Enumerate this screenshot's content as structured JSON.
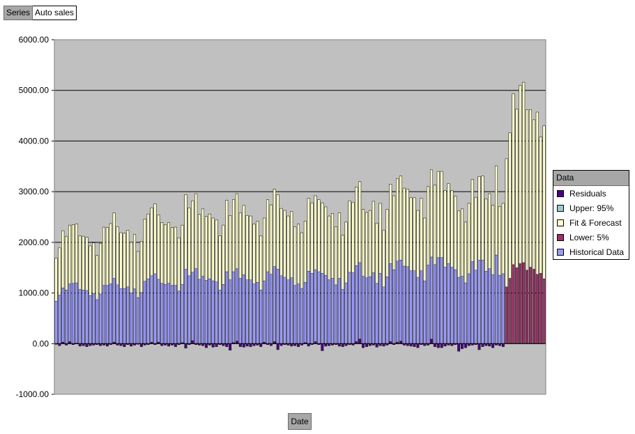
{
  "series_button": {
    "label": "Series",
    "value": "Auto sales"
  },
  "x_axis_button": {
    "label": "Date"
  },
  "legend": {
    "title": "Data",
    "items": [
      {
        "label": "Residuals",
        "color": "#4b0082"
      },
      {
        "label": "Upper: 95%",
        "color": "#99cccc"
      },
      {
        "label": "Fit & Forecast",
        "color": "#ffffcc"
      },
      {
        "label": "Lower: 5%",
        "color": "#993366"
      },
      {
        "label": "Historical Data",
        "color": "#9999ff"
      }
    ]
  },
  "chart_data": {
    "type": "bar",
    "title": "",
    "xlabel": "Date",
    "ylabel": "",
    "ylim": [
      -1000,
      6000
    ],
    "yticks": [
      "6000.00",
      "5000.00",
      "4000.00",
      "3000.00",
      "2000.00",
      "1000.00",
      "0.00",
      "-1000.00"
    ],
    "grid": true,
    "legend_position": "right",
    "plot_background": "#c0c0c0",
    "n_periods": 144,
    "forecast_start_index": 132,
    "fit_and_forecast": [
      1690,
      1890,
      2230,
      2120,
      2340,
      2350,
      2360,
      2130,
      2120,
      2100,
      1930,
      1990,
      1740,
      1980,
      2300,
      2290,
      2370,
      2580,
      2310,
      2190,
      2180,
      2240,
      2000,
      2160,
      1820,
      2020,
      2460,
      2560,
      2680,
      2760,
      2540,
      2390,
      2350,
      2390,
      2290,
      2300,
      2090,
      2340,
      2940,
      2680,
      2820,
      2960,
      2550,
      2660,
      2510,
      2560,
      2480,
      2440,
      2130,
      2340,
      2830,
      2530,
      2840,
      2960,
      2580,
      2730,
      2530,
      2520,
      2360,
      2420,
      2130,
      2480,
      2840,
      2740,
      3050,
      2940,
      2670,
      2630,
      2520,
      2610,
      2310,
      2360,
      2190,
      2420,
      2870,
      2780,
      2920,
      2840,
      2780,
      2700,
      2520,
      2570,
      2310,
      2580,
      2140,
      2400,
      2820,
      2790,
      3090,
      3200,
      2650,
      2590,
      2630,
      2810,
      2380,
      2770,
      2240,
      2650,
      3150,
      2920,
      3260,
      3310,
      3070,
      3050,
      2880,
      2880,
      2630,
      2870,
      2480,
      3100,
      3430,
      3130,
      3400,
      3400,
      3020,
      3160,
      3020,
      2910,
      2620,
      2660,
      2400,
      2770,
      3240,
      2890,
      3300,
      3310,
      2860,
      2960,
      2730,
      3510,
      2710,
      2770,
      3650,
      4160,
      4930,
      4630,
      5100,
      5160,
      4620,
      4620,
      4420,
      4570,
      4080,
      4300
    ],
    "upper_95": [
      1690,
      1890,
      2230,
      2120,
      2340,
      2350,
      2360,
      2130,
      2120,
      2100,
      1930,
      1990,
      1740,
      1980,
      2300,
      2290,
      2370,
      2580,
      2310,
      2190,
      2180,
      2240,
      2000,
      2160,
      1820,
      2020,
      2460,
      2560,
      2680,
      2760,
      2540,
      2390,
      2350,
      2390,
      2290,
      2300,
      2090,
      2340,
      2940,
      2680,
      2820,
      2960,
      2550,
      2660,
      2510,
      2560,
      2480,
      2440,
      2130,
      2340,
      2830,
      2530,
      2840,
      2960,
      2580,
      2730,
      2530,
      2520,
      2360,
      2420,
      2130,
      2480,
      2840,
      2740,
      3050,
      2940,
      2670,
      2630,
      2520,
      2610,
      2310,
      2360,
      2190,
      2420,
      2870,
      2780,
      2920,
      2840,
      2780,
      2700,
      2520,
      2570,
      2310,
      2580,
      2140,
      2400,
      2820,
      2790,
      3090,
      3200,
      2650,
      2590,
      2630,
      2810,
      2380,
      2770,
      2240,
      2650,
      3150,
      2920,
      3260,
      3310,
      3070,
      3050,
      2880,
      2880,
      2630,
      2870,
      2480,
      3100,
      3430,
      3130,
      3400,
      3400,
      3020,
      3160,
      3020,
      2910,
      2620,
      2660,
      2400,
      2770,
      3240,
      2890,
      3300,
      3310,
      2860,
      2960,
      2730,
      3510,
      2710,
      2770,
      3650,
      4160,
      4930,
      4630,
      5100,
      5160,
      4620,
      4620,
      4420,
      4570,
      4080,
      4300
    ],
    "lower_5": [
      1120,
      1290,
      1560,
      1500,
      1580,
      1600,
      1450,
      1510,
      1470,
      1370,
      1390,
      1280
    ],
    "historical_data": [
      840,
      960,
      1100,
      1060,
      1180,
      1190,
      1200,
      1070,
      1060,
      1050,
      950,
      990,
      870,
      980,
      1150,
      1150,
      1180,
      1290,
      1160,
      1090,
      1090,
      1120,
      1000,
      1080,
      910,
      1010,
      1230,
      1280,
      1340,
      1380,
      1270,
      1190,
      1170,
      1190,
      1150,
      1150,
      1040,
      1170,
      1470,
      1340,
      1410,
      1480,
      1270,
      1330,
      1250,
      1280,
      1240,
      1220,
      1060,
      1170,
      1420,
      1260,
      1420,
      1480,
      1290,
      1360,
      1260,
      1260,
      1180,
      1210,
      1060,
      1240,
      1420,
      1370,
      1520,
      1470,
      1340,
      1310,
      1260,
      1300,
      1150,
      1180,
      1090,
      1210,
      1430,
      1390,
      1460,
      1420,
      1390,
      1350,
      1260,
      1290,
      1160,
      1290,
      1070,
      1200,
      1410,
      1400,
      1540,
      1600,
      1330,
      1300,
      1320,
      1400,
      1190,
      1390,
      1120,
      1320,
      1580,
      1460,
      1630,
      1650,
      1530,
      1520,
      1440,
      1440,
      1310,
      1440,
      1240,
      1550,
      1710,
      1560,
      1700,
      1700,
      1510,
      1580,
      1510,
      1460,
      1310,
      1330,
      1200,
      1380,
      1620,
      1450,
      1650,
      1650,
      1430,
      1480,
      1360,
      1750,
      1350,
      1380
    ],
    "residuals": [
      -10,
      -40,
      30,
      -30,
      40,
      -20,
      10,
      -50,
      -40,
      -60,
      -40,
      -30,
      -20,
      -40,
      -30,
      -50,
      -20,
      30,
      -30,
      -40,
      -60,
      -20,
      -50,
      -30,
      -10,
      -60,
      -30,
      -20,
      30,
      -20,
      30,
      -40,
      -30,
      -50,
      -30,
      -60,
      -20,
      20,
      -90,
      -20,
      60,
      -20,
      -30,
      -40,
      -80,
      -30,
      -70,
      -60,
      -20,
      -40,
      -60,
      -130,
      20,
      50,
      -60,
      -70,
      -50,
      -60,
      -40,
      -30,
      -60,
      30,
      -20,
      -40,
      40,
      -120,
      -40,
      -20,
      -30,
      -50,
      -40,
      -60,
      -30,
      20,
      -50,
      -20,
      40,
      -20,
      -140,
      -50,
      -40,
      -30,
      -20,
      -50,
      -60,
      -40,
      -20,
      -30,
      40,
      90,
      -80,
      -60,
      -40,
      -30,
      -70,
      -40,
      -50,
      -30,
      40,
      -20,
      30,
      50,
      -30,
      -40,
      -50,
      -60,
      -80,
      -20,
      -40,
      -30,
      90,
      -60,
      -80,
      -80,
      -50,
      -30,
      -40,
      -20,
      -150,
      -100,
      -80,
      -40,
      -30,
      -20,
      -120,
      -60,
      -40,
      -50,
      -80,
      -30,
      -40,
      -60
    ]
  }
}
